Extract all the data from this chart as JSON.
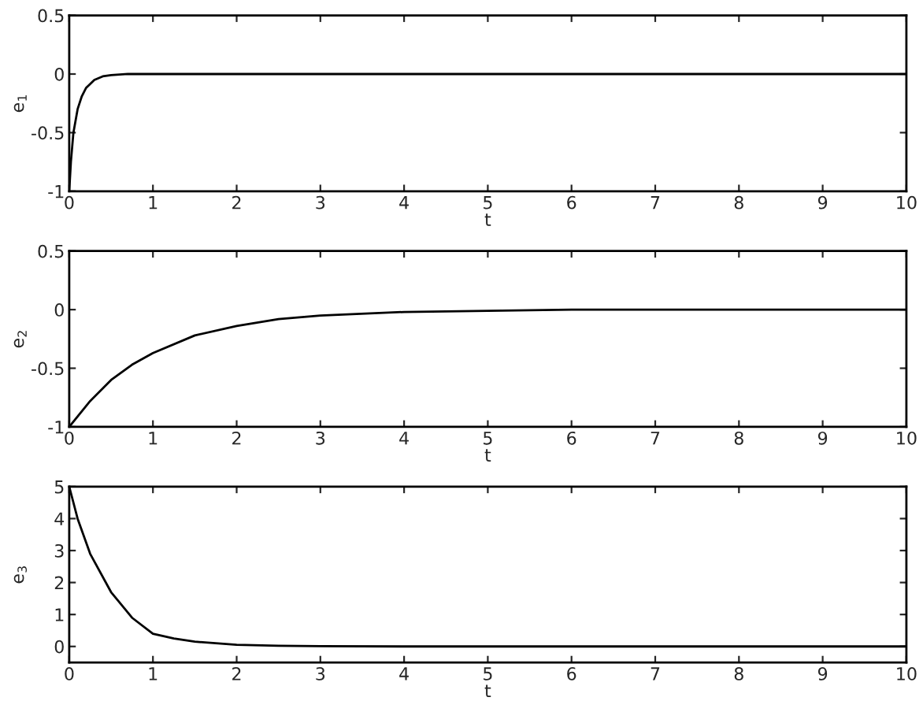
{
  "chart_data": [
    {
      "type": "line",
      "xlabel": "t",
      "ylabel": "e$_{1}$",
      "xlim": [
        0,
        10
      ],
      "ylim": [
        -1,
        0.5
      ],
      "xticks": [
        0,
        1,
        2,
        3,
        4,
        5,
        6,
        7,
        8,
        9,
        10
      ],
      "yticks": [
        -1,
        -0.5,
        0,
        0.5
      ],
      "grid": false,
      "legend": false,
      "series": [
        {
          "color": "#000000",
          "x": [
            0,
            0.02,
            0.05,
            0.1,
            0.15,
            0.2,
            0.3,
            0.4,
            0.5,
            0.7,
            1,
            2,
            5,
            10
          ],
          "values": [
            -1,
            -0.75,
            -0.5,
            -0.3,
            -0.19,
            -0.12,
            -0.05,
            -0.02,
            -0.01,
            0,
            0,
            0,
            0,
            0
          ]
        }
      ]
    },
    {
      "type": "line",
      "xlabel": "t",
      "ylabel": "e$_{2}$",
      "xlim": [
        0,
        10
      ],
      "ylim": [
        -1,
        0.5
      ],
      "xticks": [
        0,
        1,
        2,
        3,
        4,
        5,
        6,
        7,
        8,
        9,
        10
      ],
      "yticks": [
        -1,
        -0.5,
        0,
        0.5
      ],
      "grid": false,
      "legend": false,
      "series": [
        {
          "color": "#000000",
          "x": [
            0,
            0.25,
            0.5,
            0.75,
            1,
            1.5,
            2,
            2.5,
            3,
            4,
            5,
            6,
            8,
            10
          ],
          "values": [
            -1,
            -0.78,
            -0.6,
            -0.47,
            -0.37,
            -0.22,
            -0.14,
            -0.08,
            -0.05,
            -0.02,
            -0.01,
            0,
            0,
            0
          ]
        }
      ]
    },
    {
      "type": "line",
      "xlabel": "t",
      "ylabel": "e$_{3}$",
      "xlim": [
        0,
        10
      ],
      "ylim": [
        -0.5,
        5
      ],
      "xticks": [
        0,
        1,
        2,
        3,
        4,
        5,
        6,
        7,
        8,
        9,
        10
      ],
      "yticks": [
        0,
        1,
        2,
        3,
        4,
        5
      ],
      "grid": false,
      "legend": false,
      "series": [
        {
          "color": "#000000",
          "x": [
            0,
            0.1,
            0.25,
            0.5,
            0.75,
            1,
            1.25,
            1.5,
            2,
            2.5,
            3,
            4,
            6,
            10
          ],
          "values": [
            5,
            4.0,
            2.9,
            1.7,
            0.9,
            0.4,
            0.25,
            0.15,
            0.05,
            0.02,
            0.01,
            0,
            0,
            0
          ]
        }
      ]
    }
  ]
}
